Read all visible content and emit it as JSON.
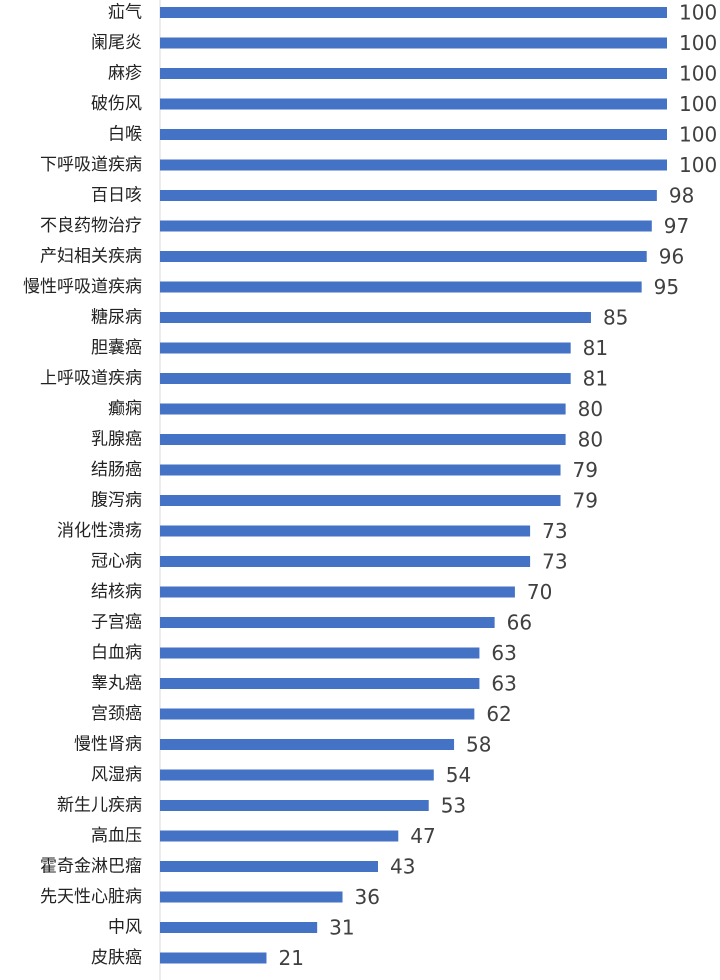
{
  "chart_data": {
    "type": "bar",
    "orientation": "horizontal",
    "title": "",
    "xlabel": "",
    "ylabel": "",
    "xlim": [
      0,
      100
    ],
    "grid": false,
    "legend": "none",
    "bar_color": "#4472C4",
    "data_labels": true,
    "categories": [
      "疝气",
      "阑尾炎",
      "麻疹",
      "破伤风",
      "白喉",
      "下呼吸道疾病",
      "百日咳",
      "不良药物治疗",
      "产妇相关疾病",
      "慢性呼吸道疾病",
      "糖尿病",
      "胆囊癌",
      "上呼吸道疾病",
      "癫痫",
      "乳腺癌",
      "结肠癌",
      "腹泻病",
      "消化性溃疡",
      "冠心病",
      "结核病",
      "子宫癌",
      "白血病",
      "睾丸癌",
      "宫颈癌",
      "慢性肾病",
      "风湿病",
      "新生儿疾病",
      "高血压",
      "霍奇金淋巴瘤",
      "先天性心脏病",
      "中风",
      "皮肤癌"
    ],
    "values": [
      100,
      100,
      100,
      100,
      100,
      100,
      98,
      97,
      96,
      95,
      85,
      81,
      81,
      80,
      80,
      79,
      79,
      73,
      73,
      70,
      66,
      63,
      63,
      62,
      58,
      54,
      53,
      47,
      43,
      36,
      31,
      21
    ]
  }
}
